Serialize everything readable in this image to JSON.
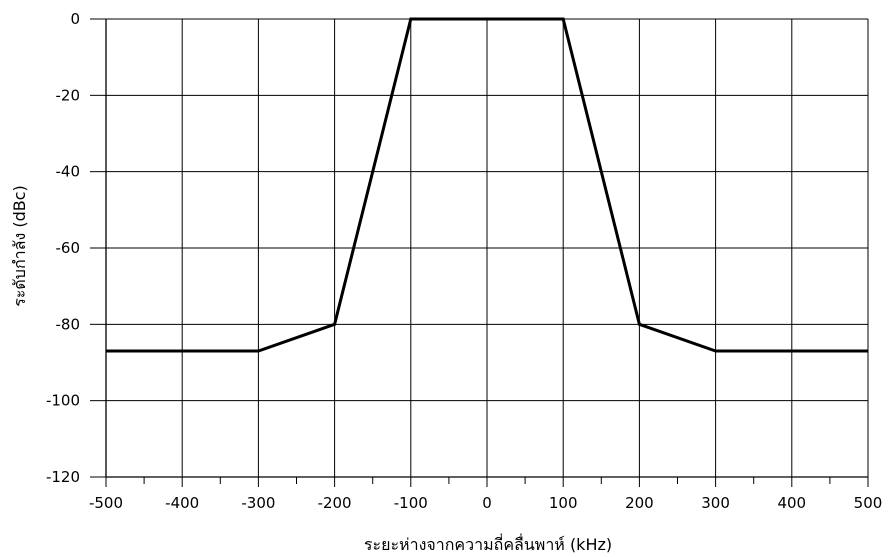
{
  "chart_data": {
    "type": "line",
    "title": "",
    "xlabel": "ระยะห่างจากความถี่คลื่นพาห์ (kHz)",
    "ylabel": "ระดับกำลัง (dBc)",
    "xlim": [
      -500,
      500
    ],
    "ylim": [
      -120,
      0
    ],
    "xticks": [
      -500,
      -400,
      -300,
      -200,
      -100,
      0,
      100,
      200,
      300,
      400,
      500
    ],
    "yticks": [
      0,
      -20,
      -40,
      -60,
      -80,
      -100,
      -120
    ],
    "grid": true,
    "legend": "none",
    "series": [
      {
        "color": "#000000",
        "x": [
          -500,
          -300,
          -200,
          -100,
          100,
          200,
          300,
          500
        ],
        "y": [
          -87,
          -87,
          -80,
          0,
          0,
          -80,
          -87,
          -87
        ]
      }
    ]
  }
}
